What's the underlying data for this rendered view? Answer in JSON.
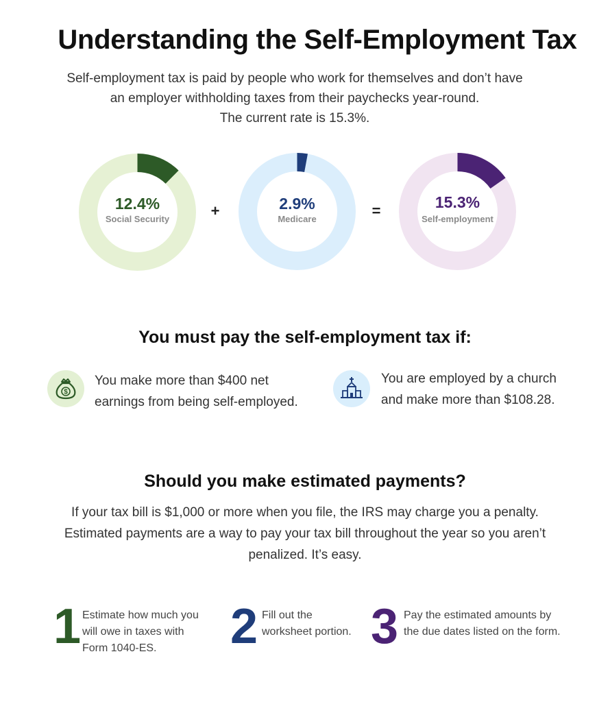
{
  "title": "Understanding the Self-Employment Tax",
  "intro": {
    "line1": "Self-employment tax is paid by people who work for themselves and don’t have",
    "line2": "an employer withholding taxes from their paychecks year-round.",
    "line3": "The current rate is 15.3%."
  },
  "rings": [
    {
      "value": 12.4,
      "percent_label": "12.4%",
      "label": "Social Security",
      "color": "#2d5a27",
      "track": "#e6f1d4"
    },
    {
      "value": 2.9,
      "percent_label": "2.9%",
      "label": "Medicare",
      "color": "#1f3d7a",
      "track": "#dbeefc"
    },
    {
      "value": 15.3,
      "percent_label": "15.3%",
      "label": "Self-employment",
      "color": "#4b2374",
      "track": "#f1e4f1"
    }
  ],
  "operators": {
    "plus": "+",
    "equals": "="
  },
  "conditions": {
    "heading": "You must pay the self-employment tax if:",
    "items": [
      {
        "icon": "money-bag-icon",
        "line1": "You make more than $400 net",
        "line2": "earnings from being self-employed."
      },
      {
        "icon": "church-icon",
        "line1": "You are employed by a church",
        "line2": "and make more than $108.28."
      }
    ]
  },
  "estimated": {
    "heading": "Should you make estimated payments?",
    "line1": "If your tax bill is $1,000 or more when you file, the IRS may charge you a penalty.",
    "line2": "Estimated payments are a way to pay your tax bill throughout the year so you aren’t",
    "line3": "penalized. It’s easy."
  },
  "steps": [
    {
      "number": "1",
      "color": "#2d5a27",
      "line1": "Estimate how much you",
      "line2": "will owe in taxes with",
      "line3": "Form 1040-ES."
    },
    {
      "number": "2",
      "color": "#1f3d7a",
      "line1": "Fill out the",
      "line2": "worksheet portion.",
      "line3": ""
    },
    {
      "number": "3",
      "color": "#4b2374",
      "line1": "Pay the estimated amounts by",
      "line2": "the due dates listed on the form.",
      "line3": ""
    }
  ]
}
